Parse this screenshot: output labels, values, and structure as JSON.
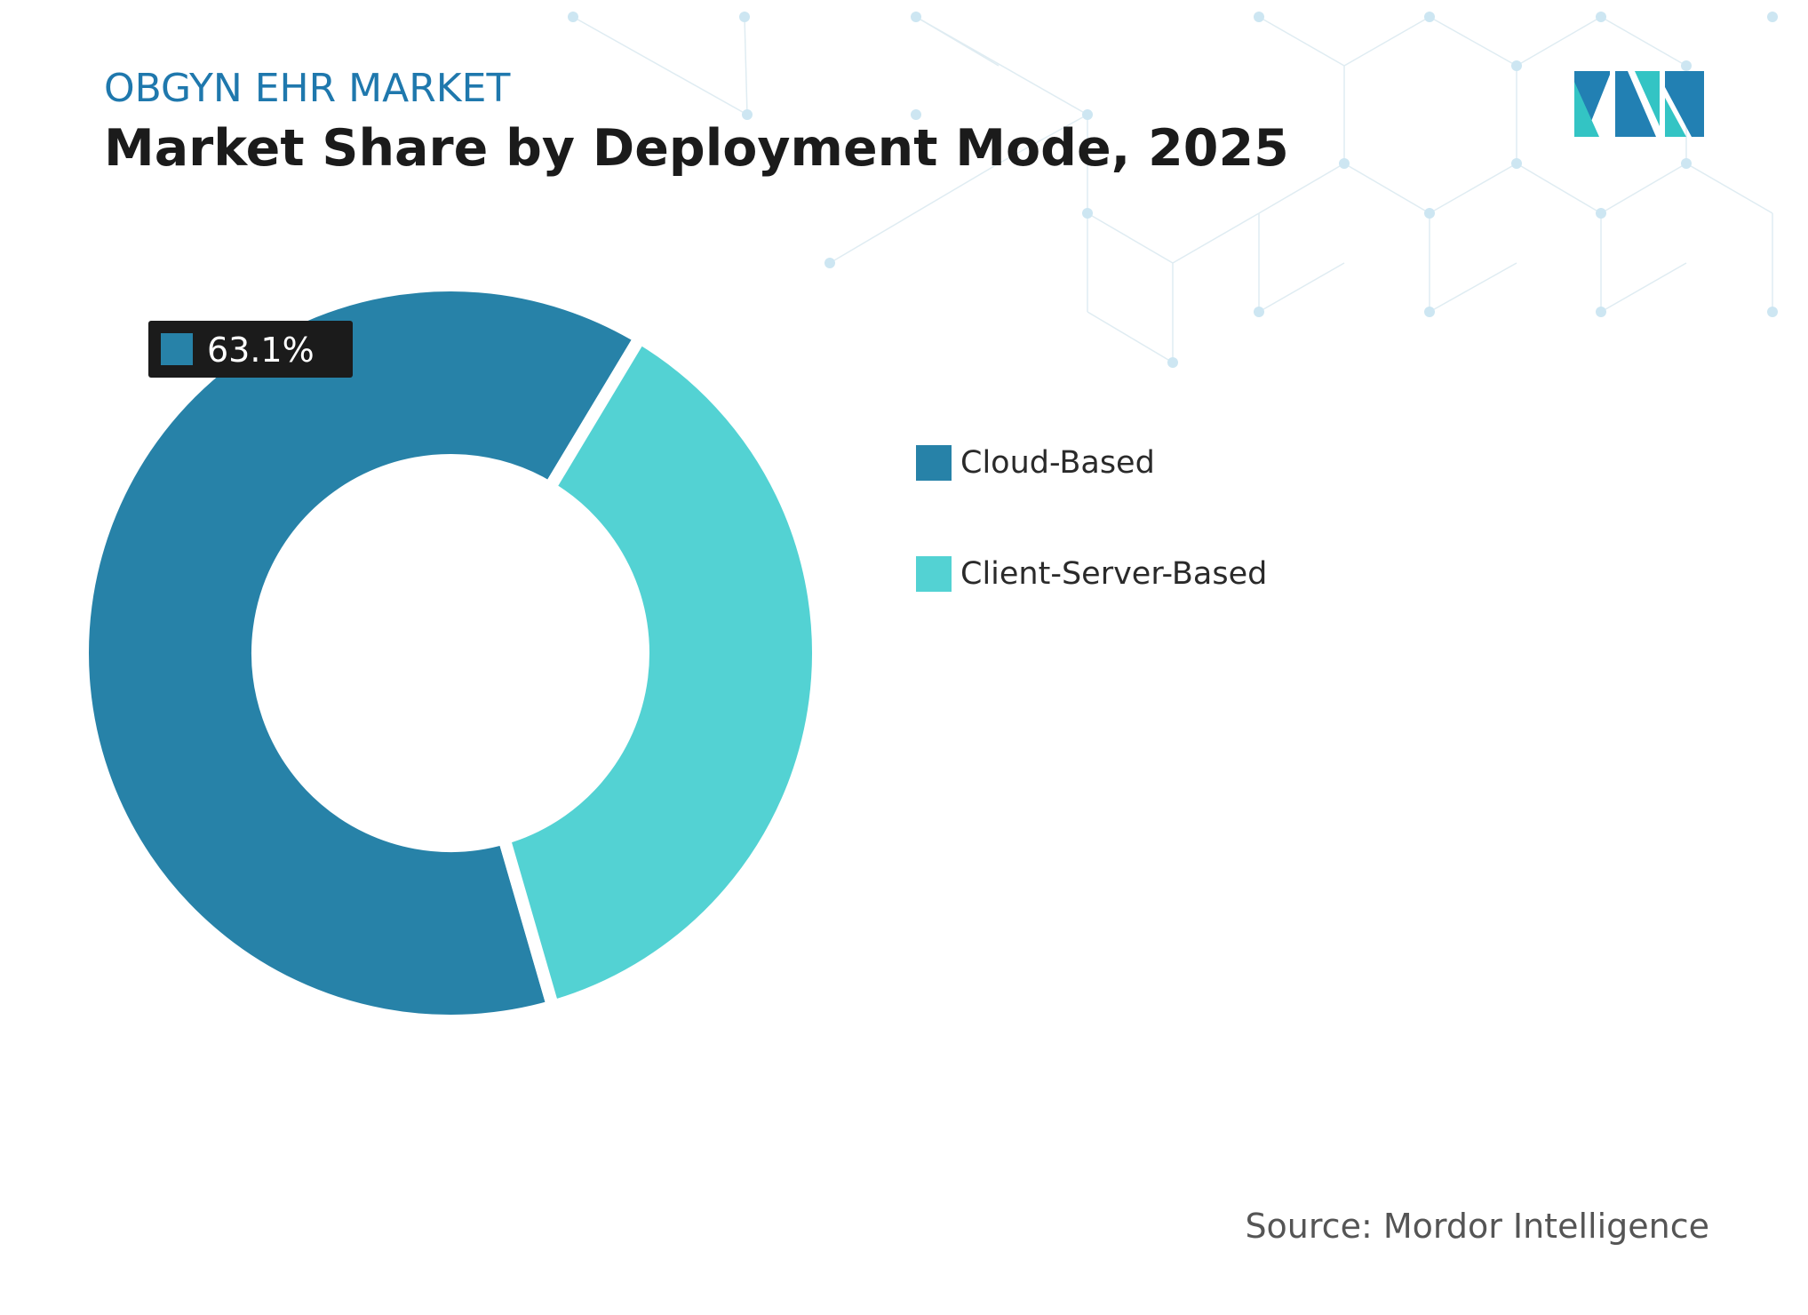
{
  "header": {
    "eyebrow": "OBGYN EHR MARKET",
    "title": "Market Share by Deployment Mode, 2025"
  },
  "logo": {
    "icon": "mordor-intelligence-logo-icon",
    "colors": [
      "#2280b3",
      "#33c4c4"
    ]
  },
  "chart_data": {
    "type": "pie",
    "variant": "donut",
    "categories": [
      "Cloud-Based",
      "Client-Server-Based"
    ],
    "values": [
      63.1,
      36.9
    ],
    "unit": "%",
    "colors": [
      "#2782a8",
      "#53d2d3"
    ],
    "labels_shown": [
      "63.1%",
      ""
    ],
    "legend_position": "right"
  },
  "footer": {
    "source": "Source: Mordor Intelligence"
  }
}
